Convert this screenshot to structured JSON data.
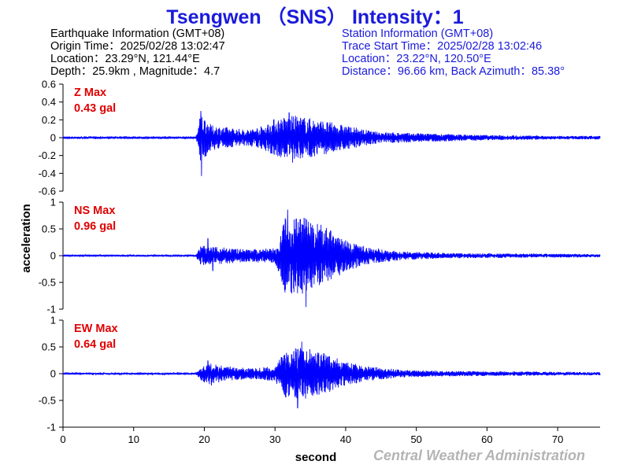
{
  "header": {
    "title": "Tsengwen （SNS） Intensity：1"
  },
  "earthquake": {
    "heading": "Earthquake Information  (GMT+08)",
    "origin_time": "Origin Time：2025/02/28 13:02:47",
    "location": "Location：23.29°N, 121.44°E",
    "depth_magnitude": "Depth：25.9km , Magnitude：4.7"
  },
  "station": {
    "heading": "Station Information  (GMT+08)",
    "trace_start": "Trace Start Time：2025/02/28 13:02:46",
    "location": "Location：23.22°N, 120.50°E",
    "distance": "Distance：96.66 km, Back Azimuth：85.38°"
  },
  "footer": {
    "credit": "Central Weather Administration"
  },
  "colors": {
    "title": "#1a1adc",
    "trace": "#0000ff",
    "peak_label": "#e00000",
    "credit": "#b4b4b4"
  },
  "chart_data": {
    "type": "line",
    "xlabel": "second",
    "ylabel": "acceleration",
    "xlim": [
      0,
      76
    ],
    "x_ticks": [
      "0",
      "10",
      "20",
      "30",
      "40",
      "50",
      "60",
      "70"
    ],
    "x_tick_values": [
      0,
      10,
      20,
      30,
      40,
      50,
      60,
      70
    ],
    "grid": false,
    "panels": [
      {
        "component": "Z",
        "max_label": "Z Max",
        "max_value": "0.43 gal",
        "ylim": [
          -0.6,
          0.6
        ],
        "y_ticks": [
          "0.6",
          "0.4",
          "0.2",
          "0",
          "-0.2",
          "-0.4",
          "-0.6"
        ],
        "y_tick_values": [
          0.6,
          0.4,
          0.2,
          0,
          -0.2,
          -0.4,
          -0.6
        ],
        "envelope": [
          [
            0,
            0.015
          ],
          [
            18.8,
            0.015
          ],
          [
            19.5,
            0.28
          ],
          [
            21,
            0.14
          ],
          [
            26,
            0.09
          ],
          [
            28.5,
            0.14
          ],
          [
            30,
            0.22
          ],
          [
            33,
            0.25
          ],
          [
            37,
            0.19
          ],
          [
            41,
            0.12
          ],
          [
            44,
            0.07
          ],
          [
            50,
            0.05
          ],
          [
            60,
            0.03
          ],
          [
            70,
            0.02
          ],
          [
            76,
            0.02
          ]
        ],
        "peaks": [
          [
            19.5,
            0.3
          ],
          [
            19.6,
            -0.43
          ],
          [
            32,
            0.28
          ],
          [
            32.5,
            -0.28
          ]
        ]
      },
      {
        "component": "NS",
        "max_label": "NS Max",
        "max_value": "0.96 gal",
        "ylim": [
          -1,
          1
        ],
        "y_ticks": [
          "1",
          "0.5",
          "0",
          "-0.5",
          "-1"
        ],
        "y_tick_values": [
          1,
          0.5,
          0,
          -0.5,
          -1
        ],
        "envelope": [
          [
            0,
            0.02
          ],
          [
            18.8,
            0.02
          ],
          [
            19.5,
            0.2
          ],
          [
            22,
            0.16
          ],
          [
            26,
            0.12
          ],
          [
            30,
            0.14
          ],
          [
            31.5,
            0.75
          ],
          [
            34,
            0.72
          ],
          [
            37,
            0.55
          ],
          [
            40,
            0.3
          ],
          [
            43,
            0.16
          ],
          [
            48,
            0.08
          ],
          [
            55,
            0.05
          ],
          [
            65,
            0.04
          ],
          [
            76,
            0.03
          ]
        ],
        "peaks": [
          [
            31.8,
            0.86
          ],
          [
            34.4,
            -0.96
          ],
          [
            20.5,
            0.32
          ],
          [
            21.2,
            -0.28
          ]
        ]
      },
      {
        "component": "EW",
        "max_label": "EW Max",
        "max_value": "0.64 gal",
        "ylim": [
          -1,
          1
        ],
        "y_ticks": [
          "1",
          "0.5",
          "0",
          "-0.5",
          "-1"
        ],
        "y_tick_values": [
          1,
          0.5,
          0,
          -0.5,
          -1
        ],
        "envelope": [
          [
            0,
            0.015
          ],
          [
            18.8,
            0.015
          ],
          [
            19.5,
            0.12
          ],
          [
            20.5,
            0.2
          ],
          [
            23,
            0.14
          ],
          [
            27,
            0.1
          ],
          [
            30,
            0.14
          ],
          [
            31.5,
            0.45
          ],
          [
            34,
            0.5
          ],
          [
            37,
            0.38
          ],
          [
            40,
            0.22
          ],
          [
            43,
            0.14
          ],
          [
            48,
            0.07
          ],
          [
            55,
            0.05
          ],
          [
            65,
            0.04
          ],
          [
            76,
            0.03
          ]
        ],
        "peaks": [
          [
            33.8,
            0.6
          ],
          [
            33.2,
            -0.64
          ],
          [
            20.5,
            0.24
          ],
          [
            21,
            -0.22
          ]
        ]
      }
    ]
  }
}
